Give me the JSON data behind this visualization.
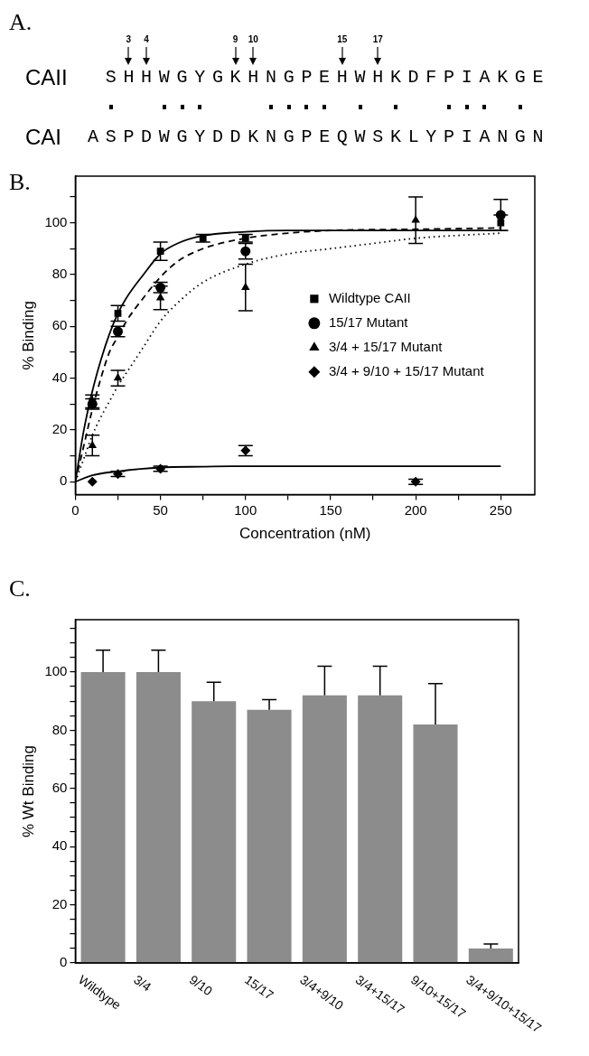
{
  "chart_data": [
    {
      "type": "other",
      "title": "A.",
      "annotations": [
        "3",
        "4",
        "9",
        "10",
        "15",
        "17",
        "CAII",
        "SHHWGYGKHNGPEHWHKDFPIAKGE",
        "CAI",
        "ASPDWGYDDKNGPEQWSKLYPIANGN"
      ]
    },
    {
      "type": "scatter",
      "title": "B.",
      "xlabel": "Concentration (nM)",
      "ylabel": "% Binding",
      "xlim": [
        0,
        270
      ],
      "ylim": [
        -5,
        118
      ],
      "xticks": [
        0,
        {
          "value": 25,
          "label": null
        },
        50,
        {
          "value": 75,
          "label": null
        },
        100,
        {
          "value": 125,
          "label": null
        },
        150,
        {
          "value": 175,
          "label": null
        },
        200,
        {
          "value": 225,
          "label": null
        },
        250
      ],
      "yticks": [
        0,
        {
          "value": 10,
          "label": null
        },
        20,
        {
          "value": 30,
          "label": null
        },
        40,
        {
          "value": 50,
          "label": null
        },
        60,
        {
          "value": 70,
          "label": null
        },
        80,
        {
          "value": 90,
          "label": null
        },
        100,
        {
          "value": 110,
          "label": null
        }
      ],
      "grid": false,
      "legend": "right",
      "series": [
        {
          "name": "Wildtype CAII",
          "type": "scatter",
          "marker": "square",
          "color": "#000000",
          "x": [
            10,
            25,
            50,
            75,
            100,
            250
          ],
          "values": [
            31,
            65,
            89,
            94,
            94,
            100
          ],
          "errors": [
            2.5,
            3,
            3.5,
            1.5,
            1.5,
            3
          ]
        },
        {
          "name": "15/17 Mutant",
          "type": "scatter",
          "marker": "circle",
          "color": "#000000",
          "x": [
            10,
            25,
            50,
            100,
            250
          ],
          "values": [
            30,
            58,
            75,
            89,
            103
          ],
          "errors": [
            2,
            2,
            2,
            3,
            6
          ]
        },
        {
          "name": "3/4 + 15/17 Mutant",
          "type": "scatter",
          "marker": "triangle",
          "color": "#000000",
          "x": [
            10,
            25,
            50,
            100,
            200
          ],
          "values": [
            14,
            40,
            71,
            75,
            101
          ],
          "errors": [
            4,
            3,
            4.5,
            9,
            9
          ]
        },
        {
          "name": "3/4 + 9/10 + 15/17 Mutant",
          "type": "scatter",
          "marker": "diamond",
          "color": "#000000",
          "x": [
            10,
            25,
            50,
            100,
            200
          ],
          "values": [
            0,
            3,
            5,
            12,
            0
          ],
          "errors": [
            null,
            1,
            1,
            2,
            1
          ]
        },
        {
          "type": "line",
          "line_style": "solid",
          "marker": "none",
          "color": "#000000",
          "x": [
            0,
            5,
            10,
            15,
            20,
            25,
            30,
            40,
            50,
            60,
            75,
            100,
            125,
            150,
            200,
            250
          ],
          "values": [
            0,
            20,
            35,
            47,
            57,
            65,
            71,
            80,
            88,
            92,
            95,
            96.5,
            97,
            97,
            97,
            97
          ]
        },
        {
          "type": "line",
          "line_style": "dashed",
          "marker": "none",
          "color": "#000000",
          "x": [
            0,
            5,
            10,
            15,
            20,
            25,
            30,
            40,
            50,
            60,
            75,
            100,
            125,
            150,
            200,
            250
          ],
          "values": [
            0,
            14,
            28,
            40,
            50,
            56,
            62,
            71,
            79,
            85,
            90,
            94,
            96,
            97,
            97.5,
            98
          ]
        },
        {
          "type": "line",
          "line_style": "dotted",
          "marker": "none",
          "color": "#000000",
          "x": [
            0,
            5,
            10,
            15,
            20,
            25,
            30,
            40,
            50,
            60,
            75,
            100,
            125,
            150,
            175,
            200,
            250
          ],
          "values": [
            0,
            9,
            18,
            25,
            31,
            37,
            42,
            52,
            62,
            69,
            77,
            84,
            88,
            90,
            92,
            94,
            96
          ]
        },
        {
          "type": "line",
          "line_style": "solid",
          "marker": "none",
          "color": "#000000",
          "x": [
            0,
            10,
            25,
            50,
            75,
            100,
            150,
            200,
            250
          ],
          "values": [
            0,
            2.5,
            4,
            5.5,
            5.8,
            6,
            6,
            6,
            6
          ]
        }
      ]
    },
    {
      "type": "bar",
      "title": "C.",
      "ylabel": "% Wt Binding",
      "ylim": [
        0,
        118
      ],
      "grid": false,
      "yticks": [
        0,
        {
          "value": 5,
          "label": null
        },
        {
          "value": 10,
          "label": null
        },
        {
          "value": 15,
          "label": null
        },
        20,
        {
          "value": 25,
          "label": null
        },
        {
          "value": 30,
          "label": null
        },
        {
          "value": 35,
          "label": null
        },
        40,
        {
          "value": 45,
          "label": null
        },
        {
          "value": 50,
          "label": null
        },
        {
          "value": 55,
          "label": null
        },
        60,
        {
          "value": 65,
          "label": null
        },
        {
          "value": 70,
          "label": null
        },
        {
          "value": 75,
          "label": null
        },
        80,
        {
          "value": 85,
          "label": null
        },
        {
          "value": 90,
          "label": null
        },
        {
          "value": 95,
          "label": null
        },
        100,
        {
          "value": 105,
          "label": null
        },
        {
          "value": 110,
          "label": null
        },
        {
          "value": 115,
          "label": null
        }
      ],
      "categories": [
        "Wildtype",
        "3/4",
        "9/10",
        "15/17",
        "3/4+9/10",
        "3/4+15/17",
        "9/10+15/17",
        "3/4+9/10+15/17"
      ],
      "values": [
        100,
        100,
        90,
        87,
        92,
        92,
        82,
        5
      ],
      "errors": [
        [
          100,
          107.5
        ],
        [
          100,
          107.5
        ],
        [
          90,
          96.5
        ],
        [
          87,
          90.5
        ],
        [
          92,
          102
        ],
        [
          92,
          102
        ],
        [
          82,
          96
        ],
        [
          5,
          6.5
        ]
      ],
      "color": "#8c8c8c"
    }
  ]
}
